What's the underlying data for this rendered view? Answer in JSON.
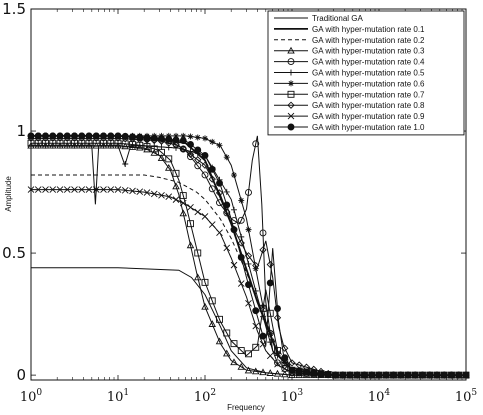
{
  "chart_data": {
    "type": "line",
    "title": "",
    "xlabel": "Frequency",
    "ylabel": "Amplitude",
    "x_scale": "log",
    "xlim": [
      1,
      100000
    ],
    "ylim": [
      -0.02,
      1.5
    ],
    "x_ticks": [
      {
        "base": "10",
        "exp": "0"
      },
      {
        "base": "10",
        "exp": "1"
      },
      {
        "base": "10",
        "exp": "2"
      },
      {
        "base": "10",
        "exp": "3"
      },
      {
        "base": "10",
        "exp": "4"
      },
      {
        "base": "10",
        "exp": "5"
      }
    ],
    "y_ticks": [
      "0",
      "0.5",
      "1",
      "1.5"
    ],
    "grid": false,
    "legend_position": "top-right",
    "series": [
      {
        "name": "Traditional GA",
        "marker": "none",
        "width": 1.0,
        "dash": "",
        "x": [
          1,
          10,
          50,
          70,
          100,
          150,
          200,
          300,
          500,
          1000,
          3000,
          100000
        ],
        "y": [
          0.44,
          0.44,
          0.43,
          0.4,
          0.33,
          0.2,
          0.1,
          0.03,
          0.01,
          0,
          0,
          0
        ]
      },
      {
        "name": "GA with hyper-mutation rate 0.1",
        "marker": "none",
        "width": 1.8,
        "dash": "",
        "x": [
          1,
          10,
          30,
          60,
          100,
          200,
          400,
          700,
          1000,
          3000,
          100000
        ],
        "y": [
          0.98,
          0.98,
          0.97,
          0.95,
          0.88,
          0.62,
          0.3,
          0.08,
          0.02,
          0,
          0
        ]
      },
      {
        "name": "GA with hyper-mutation rate 0.2",
        "marker": "none",
        "width": 1.0,
        "dash": "4,3",
        "x": [
          1,
          10,
          20,
          30,
          50,
          80,
          100,
          150,
          200,
          300,
          500,
          700,
          1000,
          3000,
          100000
        ],
        "y": [
          0.82,
          0.82,
          0.82,
          0.81,
          0.79,
          0.75,
          0.72,
          0.64,
          0.56,
          0.42,
          0.22,
          0.1,
          0.03,
          0,
          0
        ]
      },
      {
        "name": "GA with hyper-mutation rate 0.3",
        "marker": "triangle",
        "width": 1.0,
        "dash": "",
        "x": [
          1,
          10,
          20,
          30,
          40,
          50,
          60,
          80,
          100,
          150,
          200,
          300,
          500,
          1000,
          3000,
          100000
        ],
        "y": [
          0.94,
          0.94,
          0.93,
          0.9,
          0.84,
          0.74,
          0.62,
          0.42,
          0.28,
          0.13,
          0.06,
          0.02,
          0.01,
          0,
          0,
          0
        ]
      },
      {
        "name": "GA with hyper-mutation rate 0.4",
        "marker": "circle",
        "width": 1.0,
        "dash": "",
        "x": [
          1,
          10,
          20,
          40,
          60,
          100,
          150,
          200,
          250,
          300,
          350,
          400,
          450,
          500,
          600,
          700,
          1000,
          3000,
          100000
        ],
        "y": [
          0.98,
          0.98,
          0.97,
          0.96,
          0.92,
          0.82,
          0.7,
          0.64,
          0.62,
          0.68,
          0.88,
          0.98,
          0.7,
          0.3,
          0.1,
          0.04,
          0.01,
          0,
          0
        ]
      },
      {
        "name": "GA with hyper-mutation rate 0.5",
        "marker": "plus",
        "width": 1.0,
        "dash": "",
        "x": [
          1,
          5,
          5.5,
          6,
          10,
          12,
          14,
          20,
          50,
          100,
          200,
          400,
          600,
          1000,
          3000,
          100000
        ],
        "y": [
          0.94,
          0.94,
          0.7,
          0.94,
          0.94,
          0.86,
          0.94,
          0.94,
          0.93,
          0.9,
          0.72,
          0.32,
          0.1,
          0.02,
          0,
          0
        ]
      },
      {
        "name": "GA with hyper-mutation rate 0.6",
        "marker": "asterisk",
        "width": 1.0,
        "dash": "",
        "x": [
          1,
          10,
          30,
          60,
          100,
          150,
          200,
          300,
          400,
          500,
          700,
          1000,
          3000,
          100000
        ],
        "y": [
          0.98,
          0.98,
          0.98,
          0.98,
          0.97,
          0.94,
          0.86,
          0.64,
          0.4,
          0.22,
          0.08,
          0.02,
          0,
          0
        ]
      },
      {
        "name": "GA with hyper-mutation rate 0.7",
        "marker": "square",
        "width": 1.0,
        "dash": "",
        "x": [
          1,
          10,
          20,
          30,
          40,
          50,
          60,
          80,
          100,
          150,
          200,
          300,
          400,
          500,
          600,
          700,
          1000,
          3000,
          100000
        ],
        "y": [
          0.95,
          0.95,
          0.94,
          0.92,
          0.88,
          0.8,
          0.7,
          0.52,
          0.38,
          0.22,
          0.14,
          0.08,
          0.12,
          0.35,
          0.2,
          0.08,
          0.02,
          0,
          0
        ]
      },
      {
        "name": "GA with hyper-mutation rate 0.8",
        "marker": "diamond",
        "width": 1.0,
        "dash": "",
        "x": [
          1,
          10,
          30,
          50,
          100,
          150,
          200,
          300,
          400,
          500,
          600,
          700,
          800,
          1000,
          3000,
          100000
        ],
        "y": [
          0.97,
          0.97,
          0.96,
          0.94,
          0.86,
          0.74,
          0.62,
          0.5,
          0.44,
          0.55,
          0.4,
          0.2,
          0.12,
          0.05,
          0,
          0
        ]
      },
      {
        "name": "GA with hyper-mutation rate 0.9",
        "marker": "cross",
        "width": 1.0,
        "dash": "",
        "x": [
          1,
          10,
          20,
          40,
          60,
          100,
          150,
          200,
          300,
          400,
          500,
          700,
          1000,
          3000,
          100000
        ],
        "y": [
          0.76,
          0.76,
          0.75,
          0.73,
          0.7,
          0.65,
          0.58,
          0.48,
          0.32,
          0.18,
          0.1,
          0.04,
          0.01,
          0,
          0
        ]
      },
      {
        "name": "GA with hyper-mutation rate 1.0",
        "marker": "filled-circle",
        "width": 1.0,
        "dash": "",
        "x": [
          1,
          10,
          30,
          60,
          100,
          150,
          200,
          300,
          400,
          500,
          600,
          700,
          800,
          1000,
          3000,
          100000
        ],
        "y": [
          0.98,
          0.98,
          0.97,
          0.96,
          0.9,
          0.78,
          0.64,
          0.4,
          0.24,
          0.12,
          0.52,
          0.22,
          0.08,
          0.02,
          0,
          0
        ]
      }
    ]
  }
}
